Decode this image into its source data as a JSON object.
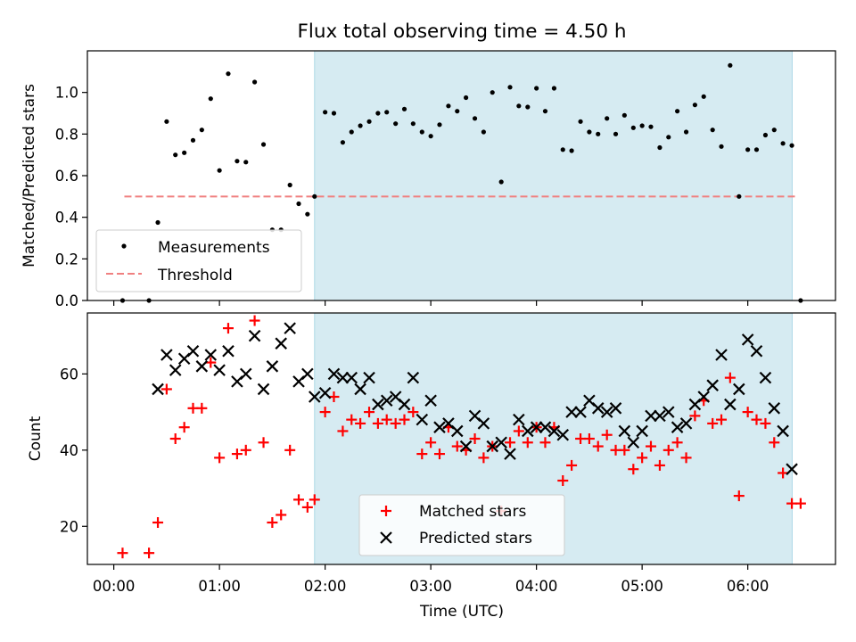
{
  "title": "Flux total observing time = 4.50 h",
  "chart_data": [
    {
      "type": "scatter",
      "panel": "top",
      "ylabel": "Matched/Predicted stars",
      "ylim": [
        0,
        1.2
      ],
      "yticks": [
        0.0,
        0.2,
        0.4,
        0.6,
        0.8,
        1.0
      ],
      "shaded_region_hours": [
        1.9,
        6.42
      ],
      "series": [
        {
          "name": "Measurements",
          "color": "#000000",
          "marker": "dot",
          "x": [
            0.083,
            0.333,
            0.417,
            0.5,
            0.583,
            0.667,
            0.75,
            0.833,
            0.917,
            1.0,
            1.083,
            1.167,
            1.25,
            1.333,
            1.417,
            1.5,
            1.583,
            1.667,
            1.75,
            1.833,
            1.9,
            2.0,
            2.083,
            2.167,
            2.25,
            2.333,
            2.417,
            2.5,
            2.583,
            2.667,
            2.75,
            2.833,
            2.917,
            3.0,
            3.083,
            3.167,
            3.25,
            3.333,
            3.417,
            3.5,
            3.583,
            3.667,
            3.75,
            3.833,
            3.917,
            4.0,
            4.083,
            4.167,
            4.25,
            4.333,
            4.417,
            4.5,
            4.583,
            4.667,
            4.75,
            4.833,
            4.917,
            5.0,
            5.083,
            5.167,
            5.25,
            5.333,
            5.417,
            5.5,
            5.583,
            5.667,
            5.75,
            5.833,
            5.917,
            6.0,
            6.083,
            6.167,
            6.25,
            6.333,
            6.417,
            6.5
          ],
          "y": [
            0.0,
            0.0,
            0.375,
            0.86,
            0.7,
            0.71,
            0.77,
            0.82,
            0.97,
            0.625,
            1.09,
            0.67,
            0.665,
            1.05,
            0.75,
            0.34,
            0.34,
            0.555,
            0.465,
            0.415,
            0.5,
            0.905,
            0.9,
            0.76,
            0.81,
            0.84,
            0.86,
            0.9,
            0.905,
            0.85,
            0.92,
            0.85,
            0.81,
            0.79,
            0.845,
            0.935,
            0.91,
            0.975,
            0.875,
            0.81,
            1.0,
            0.57,
            1.025,
            0.935,
            0.93,
            1.02,
            0.91,
            1.02,
            0.725,
            0.72,
            0.86,
            0.81,
            0.8,
            0.875,
            0.8,
            0.89,
            0.83,
            0.84,
            0.835,
            0.735,
            0.785,
            0.91,
            0.81,
            0.94,
            0.98,
            0.82,
            0.74,
            1.13,
            0.5,
            0.725,
            0.725,
            0.795,
            0.82,
            0.755,
            0.745,
            0.0
          ]
        },
        {
          "name": "Threshold",
          "color": "#f08080",
          "style": "dashed",
          "x": [
            0.1,
            6.45
          ],
          "y": [
            0.5,
            0.5
          ]
        }
      ],
      "legend": "lower left"
    },
    {
      "type": "scatter",
      "panel": "bottom",
      "xlabel": "Time (UTC)",
      "ylabel": "Count",
      "xlim": [
        -0.25,
        6.83
      ],
      "ylim": [
        10,
        76
      ],
      "xticks": [
        "00:00",
        "01:00",
        "02:00",
        "03:00",
        "04:00",
        "05:00",
        "06:00"
      ],
      "yticks": [
        20,
        40,
        60
      ],
      "shaded_region_hours": [
        1.9,
        6.42
      ],
      "series": [
        {
          "name": "Matched stars",
          "color": "#ff0000",
          "marker": "plus",
          "x": [
            0.083,
            0.333,
            0.417,
            0.5,
            0.583,
            0.667,
            0.75,
            0.833,
            0.917,
            1.0,
            1.083,
            1.167,
            1.25,
            1.333,
            1.417,
            1.5,
            1.583,
            1.667,
            1.75,
            1.833,
            1.9,
            2.0,
            2.083,
            2.167,
            2.25,
            2.333,
            2.417,
            2.5,
            2.583,
            2.667,
            2.75,
            2.833,
            2.917,
            3.0,
            3.083,
            3.167,
            3.25,
            3.333,
            3.417,
            3.5,
            3.583,
            3.667,
            3.75,
            3.833,
            3.917,
            4.0,
            4.083,
            4.167,
            4.25,
            4.333,
            4.417,
            4.5,
            4.583,
            4.667,
            4.75,
            4.833,
            4.917,
            5.0,
            5.083,
            5.167,
            5.25,
            5.333,
            5.417,
            5.5,
            5.583,
            5.667,
            5.75,
            5.833,
            5.917,
            6.0,
            6.083,
            6.167,
            6.25,
            6.333,
            6.417,
            6.5
          ],
          "y": [
            13,
            13,
            21,
            56,
            43,
            46,
            51,
            51,
            63,
            38,
            72,
            39,
            40,
            74,
            42,
            21,
            23,
            40,
            27,
            25,
            27,
            50,
            54,
            45,
            48,
            47,
            50,
            47,
            48,
            47,
            48,
            50,
            39,
            42,
            39,
            46,
            41,
            40,
            43,
            38,
            41,
            24,
            42,
            45,
            42,
            46,
            42,
            46,
            32,
            36,
            43,
            43,
            41,
            44,
            40,
            40,
            35,
            38,
            41,
            36,
            40,
            42,
            38,
            49,
            53,
            47,
            48,
            59,
            28,
            50,
            48,
            47,
            42,
            34,
            26,
            26
          ]
        },
        {
          "name": "Predicted stars",
          "color": "#000000",
          "marker": "cross",
          "x": [
            0.417,
            0.5,
            0.583,
            0.667,
            0.75,
            0.833,
            0.917,
            1.0,
            1.083,
            1.167,
            1.25,
            1.333,
            1.417,
            1.5,
            1.583,
            1.667,
            1.75,
            1.833,
            1.9,
            2.0,
            2.083,
            2.167,
            2.25,
            2.333,
            2.417,
            2.5,
            2.583,
            2.667,
            2.75,
            2.833,
            2.917,
            3.0,
            3.083,
            3.167,
            3.25,
            3.333,
            3.417,
            3.5,
            3.583,
            3.667,
            3.75,
            3.833,
            3.917,
            4.0,
            4.083,
            4.167,
            4.25,
            4.333,
            4.417,
            4.5,
            4.583,
            4.667,
            4.75,
            4.833,
            4.917,
            5.0,
            5.083,
            5.167,
            5.25,
            5.333,
            5.417,
            5.5,
            5.583,
            5.667,
            5.75,
            5.833,
            5.917,
            6.0,
            6.083,
            6.167,
            6.25,
            6.333,
            6.417
          ],
          "y": [
            56,
            65,
            61,
            64,
            66,
            62,
            65,
            61,
            66,
            58,
            60,
            70,
            56,
            62,
            68,
            72,
            58,
            60,
            54,
            55,
            60,
            59,
            59,
            56,
            59,
            52,
            53,
            54,
            52,
            59,
            48,
            53,
            46,
            47,
            45,
            41,
            49,
            47,
            41,
            42,
            39,
            48,
            45,
            46,
            46,
            45,
            44,
            50,
            50,
            53,
            51,
            50,
            51,
            45,
            42,
            45,
            49,
            49,
            50,
            46,
            47,
            52,
            54,
            57,
            65,
            52,
            56,
            69,
            66,
            59,
            51,
            45,
            35
          ]
        }
      ],
      "legend": "lower center"
    }
  ]
}
